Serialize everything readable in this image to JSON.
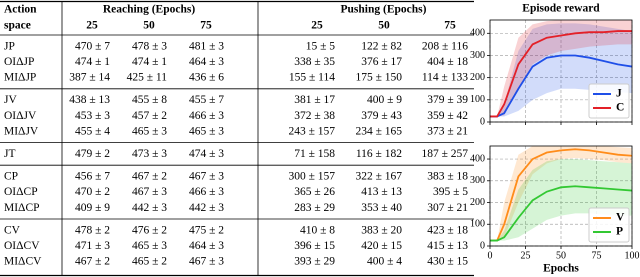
{
  "table": {
    "header": {
      "action_space": [
        "Action",
        "space"
      ],
      "groups": [
        {
          "name": "Reaching (Epochs)",
          "epochs": [
            25,
            50,
            75
          ]
        },
        {
          "name": "Pushing (Epochs)",
          "epochs": [
            25,
            50,
            75
          ]
        }
      ]
    },
    "sections": [
      [
        {
          "label": "JP",
          "cells": [
            "470 ± 7",
            "478 ± 3",
            "481 ± 3",
            "15 ± 5",
            "122 ± 82",
            "208 ± 116"
          ]
        },
        {
          "label": "OIΔJP",
          "cells": [
            "474 ± 1",
            "474 ± 1",
            "464 ± 3",
            "338 ± 35",
            "376 ± 17",
            "404 ± 18"
          ]
        },
        {
          "label": "MIΔJP",
          "cells": [
            "387 ± 14",
            "425 ± 11",
            "436 ± 6",
            "155 ± 114",
            "175 ± 150",
            "114 ± 133"
          ]
        }
      ],
      [
        {
          "label": "JV",
          "cells": [
            "438 ± 13",
            "455 ± 8",
            "455 ± 7",
            "381 ± 17",
            "400 ± 9",
            "379 ± 39"
          ]
        },
        {
          "label": "OIΔJV",
          "cells": [
            "453 ± 3",
            "457 ± 2",
            "466 ± 3",
            "372 ± 38",
            "379 ± 43",
            "359 ± 42"
          ]
        },
        {
          "label": "MIΔJV",
          "cells": [
            "455 ± 4",
            "465 ± 3",
            "465 ± 3",
            "243 ± 157",
            "234 ± 165",
            "373 ± 21"
          ]
        }
      ],
      [
        {
          "label": "JT",
          "cells": [
            "479 ± 2",
            "473 ± 3",
            "474 ± 3",
            "71 ± 158",
            "116 ± 182",
            "187 ± 257"
          ]
        }
      ],
      [
        {
          "label": "CP",
          "cells": [
            "456 ± 7",
            "467 ± 2",
            "467 ± 3",
            "300 ± 157",
            "322 ± 167",
            "383 ± 18"
          ]
        },
        {
          "label": "OIΔCP",
          "cells": [
            "470 ± 2",
            "467 ± 3",
            "466 ± 3",
            "365 ± 26",
            "413 ± 13",
            "395 ± 5"
          ]
        },
        {
          "label": "MIΔCP",
          "cells": [
            "409 ± 9",
            "442 ± 3",
            "442 ± 3",
            "283 ± 29",
            "353 ± 40",
            "307 ± 21"
          ]
        }
      ],
      [
        {
          "label": "CV",
          "cells": [
            "478 ± 2",
            "476 ± 2",
            "475 ± 2",
            "410 ± 8",
            "383 ± 20",
            "423 ± 18"
          ]
        },
        {
          "label": "OIΔCV",
          "cells": [
            "471 ± 3",
            "465 ± 3",
            "464 ± 3",
            "396 ± 15",
            "420 ± 15",
            "415 ± 13"
          ]
        },
        {
          "label": "MIΔCV",
          "cells": [
            "467 ± 2",
            "465 ± 2",
            "467 ± 3",
            "393 ± 29",
            "400 ± 4",
            "430 ± 15"
          ]
        }
      ]
    ]
  },
  "chart_data": [
    {
      "type": "line",
      "title": "Episode reward",
      "x": [
        0,
        5,
        10,
        20,
        30,
        40,
        50,
        60,
        70,
        80,
        90,
        100
      ],
      "xlim": [
        0,
        100
      ],
      "xticks": [
        0,
        25,
        50,
        75,
        100
      ],
      "ylim": [
        0,
        460
      ],
      "yticks": [
        0,
        100,
        200,
        300,
        400
      ],
      "grid": true,
      "legend": "lower right",
      "series": [
        {
          "name": "J",
          "color": "#1f4fe8",
          "values": [
            25,
            25,
            40,
            150,
            250,
            290,
            300,
            300,
            290,
            275,
            260,
            250
          ],
          "lower": [
            25,
            25,
            25,
            50,
            100,
            130,
            150,
            150,
            145,
            140,
            135,
            130
          ],
          "upper": [
            25,
            25,
            80,
            320,
            420,
            440,
            445,
            445,
            440,
            430,
            420,
            410
          ]
        },
        {
          "name": "C",
          "color": "#e32028",
          "values": [
            25,
            25,
            80,
            260,
            350,
            380,
            390,
            400,
            405,
            405,
            410,
            410
          ],
          "lower": [
            25,
            25,
            30,
            150,
            260,
            300,
            320,
            330,
            340,
            345,
            350,
            350
          ],
          "upper": [
            25,
            25,
            160,
            380,
            440,
            455,
            460,
            460,
            460,
            460,
            460,
            460
          ]
        }
      ]
    },
    {
      "type": "line",
      "x_label": "Epochs",
      "x": [
        0,
        5,
        10,
        20,
        30,
        40,
        50,
        60,
        70,
        80,
        90,
        100
      ],
      "xlim": [
        0,
        100
      ],
      "xticks": [
        0,
        25,
        50,
        75,
        100
      ],
      "ylim": [
        0,
        460
      ],
      "yticks": [
        0,
        100,
        200,
        300,
        400
      ],
      "grid": true,
      "legend": "lower right",
      "series": [
        {
          "name": "V",
          "color": "#ff8c1a",
          "values": [
            25,
            25,
            100,
            320,
            400,
            430,
            440,
            445,
            440,
            430,
            420,
            415
          ],
          "lower": [
            25,
            25,
            40,
            200,
            330,
            380,
            400,
            405,
            400,
            395,
            385,
            380
          ],
          "upper": [
            25,
            25,
            200,
            420,
            460,
            460,
            460,
            460,
            460,
            460,
            455,
            450
          ]
        },
        {
          "name": "P",
          "color": "#33c833",
          "values": [
            25,
            25,
            40,
            130,
            210,
            250,
            270,
            275,
            270,
            265,
            260,
            255
          ],
          "lower": [
            25,
            25,
            25,
            40,
            80,
            120,
            140,
            150,
            150,
            145,
            140,
            140
          ],
          "upper": [
            25,
            25,
            70,
            260,
            350,
            390,
            400,
            400,
            395,
            390,
            385,
            380
          ]
        }
      ]
    }
  ]
}
